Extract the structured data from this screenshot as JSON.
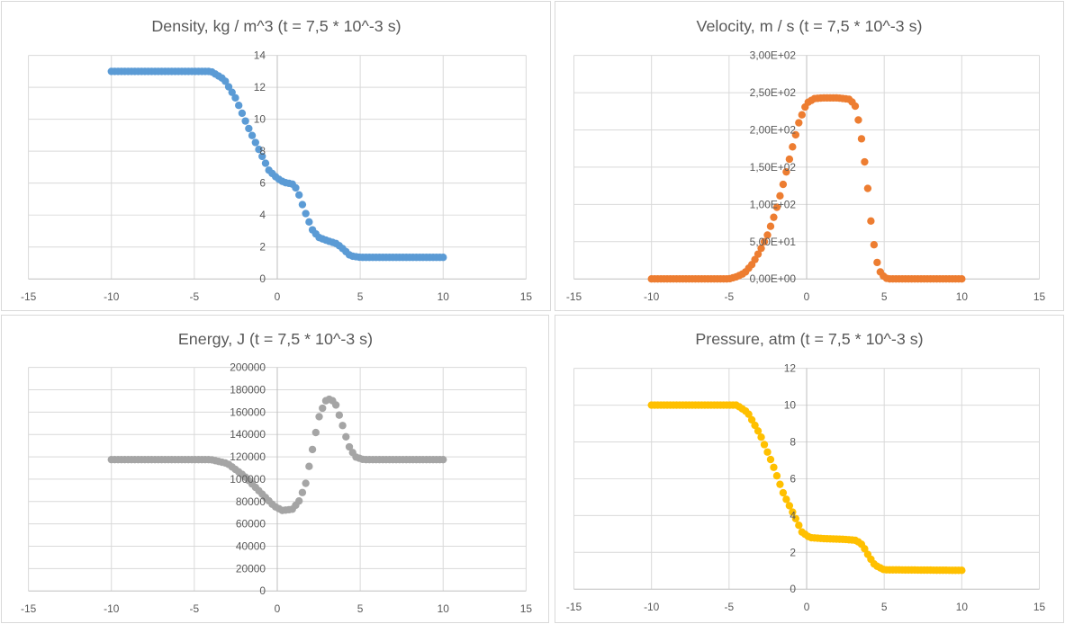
{
  "chart_data": [
    {
      "type": "scatter",
      "title": "Density, kg / m^3 (t = 7,5 * 10^-3 s)",
      "xlabel": "",
      "ylabel": "",
      "xlim": [
        -15,
        15
      ],
      "ylim": [
        0,
        14
      ],
      "x_ticks": [
        "-15",
        "-10",
        "-5",
        "0",
        "5",
        "10",
        "15"
      ],
      "y_ticks": [
        "0",
        "2",
        "4",
        "6",
        "8",
        "10",
        "12",
        "14"
      ],
      "y_tick_values": [
        0,
        2,
        4,
        6,
        8,
        10,
        12,
        14
      ],
      "grid": true,
      "color": "#5b9bd5",
      "x_range": [
        -10,
        10
      ],
      "n_points": 100,
      "points": [
        [
          -10,
          13
        ],
        [
          -4,
          13
        ],
        [
          -3.2,
          12.5
        ],
        [
          -2.5,
          11.3
        ],
        [
          -1.8,
          9.6
        ],
        [
          -1.2,
          8.3
        ],
        [
          -0.5,
          6.8
        ],
        [
          0,
          6.3
        ],
        [
          0.4,
          6.05
        ],
        [
          0.9,
          5.95
        ],
        [
          1.2,
          5.6
        ],
        [
          1.6,
          4.4
        ],
        [
          2.1,
          3.1
        ],
        [
          2.5,
          2.6
        ],
        [
          3,
          2.4
        ],
        [
          3.6,
          2.2
        ],
        [
          4,
          1.85
        ],
        [
          4.4,
          1.45
        ],
        [
          5,
          1.35
        ],
        [
          10,
          1.35
        ]
      ]
    },
    {
      "type": "scatter",
      "title": "Velocity, m / s (t = 7,5 * 10^-3 s)",
      "xlabel": "",
      "ylabel": "",
      "xlim": [
        -15,
        15
      ],
      "ylim": [
        0,
        300
      ],
      "x_ticks": [
        "-15",
        "-10",
        "-5",
        "0",
        "5",
        "10",
        "15"
      ],
      "y_ticks": [
        "0,00E+00",
        "5,00E+01",
        "1,00E+02",
        "1,50E+02",
        "2,00E+02",
        "2,50E+02",
        "3,00E+02"
      ],
      "y_tick_values": [
        0,
        50,
        100,
        150,
        200,
        250,
        300
      ],
      "grid": true,
      "color": "#ed7d31",
      "x_range": [
        -10,
        10
      ],
      "n_points": 100,
      "points": [
        [
          -10,
          0
        ],
        [
          -5,
          0
        ],
        [
          -4.5,
          3
        ],
        [
          -4,
          8
        ],
        [
          -3.5,
          20
        ],
        [
          -3,
          38
        ],
        [
          -2.5,
          60
        ],
        [
          -2,
          90
        ],
        [
          -1.5,
          128
        ],
        [
          -1,
          170
        ],
        [
          -0.5,
          210
        ],
        [
          0,
          236
        ],
        [
          0.5,
          242
        ],
        [
          1,
          243
        ],
        [
          2,
          243
        ],
        [
          2.8,
          241
        ],
        [
          3.2,
          230
        ],
        [
          3.6,
          180
        ],
        [
          3.9,
          130
        ],
        [
          4.2,
          65
        ],
        [
          4.5,
          25
        ],
        [
          4.8,
          6
        ],
        [
          5.2,
          0
        ],
        [
          10,
          0
        ]
      ]
    },
    {
      "type": "scatter",
      "title": "Energy, J (t = 7,5 * 10^-3 s)",
      "xlabel": "",
      "ylabel": "",
      "xlim": [
        -15,
        15
      ],
      "ylim": [
        0,
        200000
      ],
      "x_ticks": [
        "-15",
        "-10",
        "-5",
        "0",
        "5",
        "10",
        "15"
      ],
      "y_ticks": [
        "0",
        "20000",
        "40000",
        "60000",
        "80000",
        "100000",
        "120000",
        "140000",
        "160000",
        "180000",
        "200000"
      ],
      "y_tick_values": [
        0,
        20000,
        40000,
        60000,
        80000,
        100000,
        120000,
        140000,
        160000,
        180000,
        200000
      ],
      "grid": true,
      "color": "#a5a5a5",
      "x_range": [
        -10,
        10
      ],
      "n_points": 100,
      "points": [
        [
          -10,
          117500
        ],
        [
          -4,
          117500
        ],
        [
          -3,
          114000
        ],
        [
          -2,
          103000
        ],
        [
          -1,
          88000
        ],
        [
          -0.2,
          76000
        ],
        [
          0.3,
          72000
        ],
        [
          0.9,
          73000
        ],
        [
          1.3,
          80000
        ],
        [
          1.7,
          95000
        ],
        [
          2.1,
          125000
        ],
        [
          2.5,
          155000
        ],
        [
          2.9,
          170000
        ],
        [
          3.2,
          172000
        ],
        [
          3.5,
          168000
        ],
        [
          3.9,
          150000
        ],
        [
          4.3,
          130000
        ],
        [
          4.7,
          120000
        ],
        [
          5.2,
          117500
        ],
        [
          10,
          117500
        ]
      ]
    },
    {
      "type": "scatter",
      "title": "Pressure, atm (t = 7,5 * 10^-3 s)",
      "xlabel": "",
      "ylabel": "",
      "xlim": [
        -15,
        15
      ],
      "ylim": [
        0,
        12
      ],
      "x_ticks": [
        "-15",
        "-10",
        "-5",
        "0",
        "5",
        "10",
        "15"
      ],
      "y_ticks": [
        "0",
        "2",
        "4",
        "6",
        "8",
        "10",
        "12"
      ],
      "y_tick_values": [
        0,
        2,
        4,
        6,
        8,
        10,
        12
      ],
      "grid": true,
      "color": "#ffc000",
      "x_range": [
        -10,
        10
      ],
      "n_points": 100,
      "points": [
        [
          -10,
          10
        ],
        [
          -4.5,
          10
        ],
        [
          -3.8,
          9.6
        ],
        [
          -3,
          8.4
        ],
        [
          -2.2,
          6.8
        ],
        [
          -1.5,
          5.2
        ],
        [
          -0.8,
          4
        ],
        [
          -0.3,
          3.1
        ],
        [
          0.2,
          2.8
        ],
        [
          1,
          2.75
        ],
        [
          2.5,
          2.7
        ],
        [
          3.2,
          2.65
        ],
        [
          3.6,
          2.4
        ],
        [
          4,
          1.8
        ],
        [
          4.4,
          1.3
        ],
        [
          5,
          1.05
        ],
        [
          10,
          1.02
        ]
      ]
    }
  ]
}
